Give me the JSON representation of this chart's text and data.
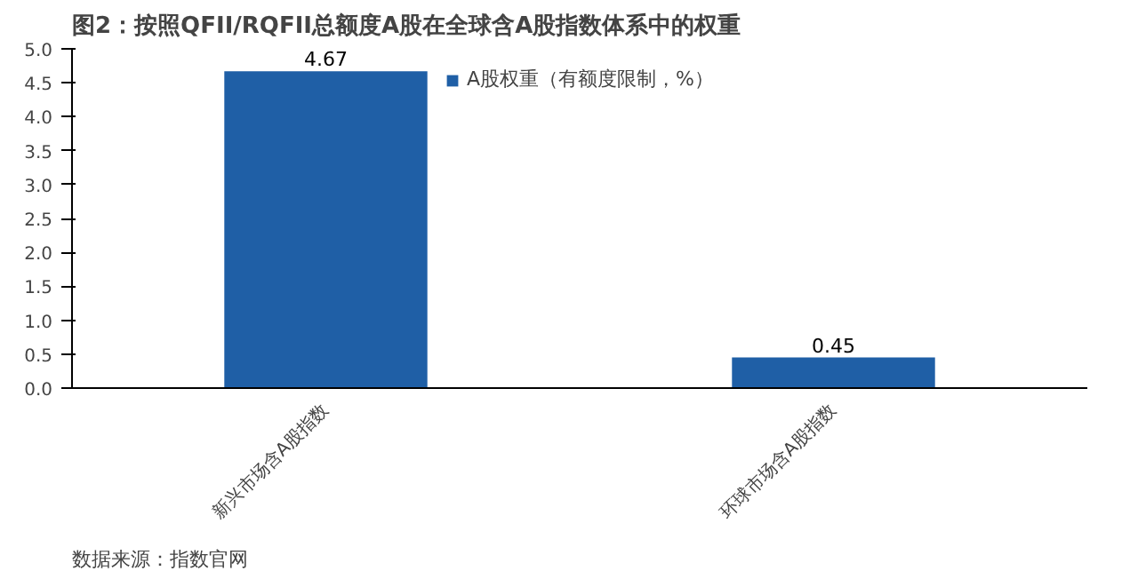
{
  "chart_data": {
    "type": "bar",
    "title": "图2：按照QFII/RQFII总额度A股在全球含A股指数体系中的权重",
    "categories": [
      "新兴市场含A股指数",
      "环球市场含A股指数"
    ],
    "series": [
      {
        "name": "A股权重（有额度限制，%）",
        "color": "#1f5fa6",
        "values": [
          4.67,
          0.45
        ]
      }
    ],
    "ylim": [
      0,
      5
    ],
    "yticks": [
      {
        "value": 0,
        "label": "0.0"
      },
      {
        "value": 0.5,
        "label": "0.5"
      },
      {
        "value": 1,
        "label": "1.0"
      },
      {
        "value": 1.5,
        "label": "1.5"
      },
      {
        "value": 2,
        "label": "2.0"
      },
      {
        "value": 2.5,
        "label": "2.5"
      },
      {
        "value": 3,
        "label": "3.0"
      },
      {
        "value": 3.5,
        "label": "3.5"
      },
      {
        "value": 4,
        "label": "4.0"
      },
      {
        "value": 4.5,
        "label": "4.5"
      },
      {
        "value": 5,
        "label": "5.0"
      }
    ],
    "data_labels": true,
    "grid": false,
    "legend": "top",
    "annotations": [
      "数据来源：指数官网"
    ]
  }
}
